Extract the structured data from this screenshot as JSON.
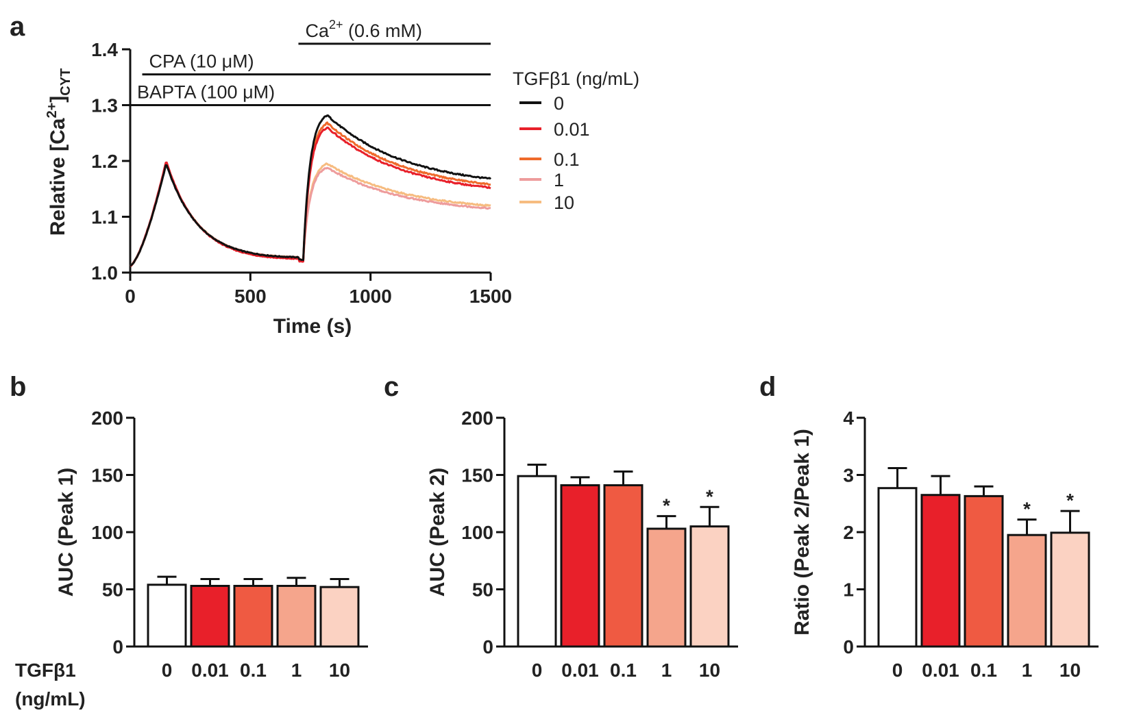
{
  "panel_labels": {
    "a": "a",
    "b": "b",
    "c": "c",
    "d": "d"
  },
  "chart_data": [
    {
      "type": "line",
      "panel": "a",
      "xlabel": "Time (s)",
      "ylabel_main": "Relative [Ca",
      "ylabel_sup": "2+",
      "ylabel_end": "]",
      "ylabel_sub": "CYT",
      "xlim": [
        0,
        1500
      ],
      "ylim": [
        1.0,
        1.4
      ],
      "xticks": [
        0,
        500,
        1000,
        1500
      ],
      "xtick_labels": [
        "0",
        "500",
        "1000",
        "1500"
      ],
      "yticks": [
        1.0,
        1.1,
        1.2,
        1.3,
        1.4
      ],
      "ytick_labels": [
        "1.0",
        "1.1",
        "1.2",
        "1.3",
        "1.4"
      ],
      "treatments": [
        {
          "label_main": "Ca",
          "label_sup": "2+",
          "label_rest": " (0.6 mM)",
          "x_start": 700,
          "x_end": 1500,
          "y": 1.41
        },
        {
          "label_main": "CPA (10 μM)",
          "label_sup": "",
          "label_rest": "",
          "x_start": 50,
          "x_end": 1500,
          "y": 1.355
        },
        {
          "label_main": "BAPTA (100 μM)",
          "label_sup": "",
          "label_rest": "",
          "x_start": 0,
          "x_end": 1500,
          "y": 1.3
        }
      ],
      "legend_title": "TGFβ1 (ng/mL)",
      "series": [
        {
          "name": "0",
          "color": "#111111",
          "peak1": 1.195,
          "trough": 1.025,
          "peak2": 1.282,
          "end": 1.168
        },
        {
          "name": "0.01",
          "color": "#e8202a",
          "peak1": 1.2,
          "trough": 1.022,
          "peak2": 1.26,
          "end": 1.152
        },
        {
          "name": "0.1",
          "color": "#ef6a2b",
          "peak1": 1.197,
          "trough": 1.024,
          "peak2": 1.268,
          "end": 1.158
        },
        {
          "name": "1",
          "color": "#ee9c9c",
          "peak1": 1.196,
          "trough": 1.025,
          "peak2": 1.188,
          "end": 1.115
        },
        {
          "name": "10",
          "color": "#f6bc80",
          "peak1": 1.197,
          "trough": 1.025,
          "peak2": 1.195,
          "end": 1.12
        }
      ]
    },
    {
      "type": "bar",
      "panel": "b",
      "ylabel": "AUC (Peak 1)",
      "ylim": [
        0,
        200
      ],
      "yticks": [
        0,
        50,
        100,
        150,
        200
      ],
      "ytick_labels": [
        "0",
        "50",
        "100",
        "150",
        "200"
      ],
      "categories": [
        "0",
        "0.01",
        "0.1",
        "1",
        "10"
      ],
      "values": [
        54,
        53,
        53,
        53,
        52
      ],
      "errors": [
        7,
        6,
        6,
        7,
        7
      ],
      "significance": [
        "",
        "",
        "",
        "",
        ""
      ],
      "colors": [
        "#ffffff",
        "#e8202a",
        "#ef5a42",
        "#f5a58c",
        "#fbd2c2"
      ],
      "x_title_line1": "TGFβ1",
      "x_title_line2": "(ng/mL)"
    },
    {
      "type": "bar",
      "panel": "c",
      "ylabel": "AUC (Peak 2)",
      "ylim": [
        0,
        200
      ],
      "yticks": [
        0,
        50,
        100,
        150,
        200
      ],
      "ytick_labels": [
        "0",
        "50",
        "100",
        "150",
        "200"
      ],
      "categories": [
        "0",
        "0.01",
        "0.1",
        "1",
        "10"
      ],
      "values": [
        149,
        141,
        141,
        103,
        105
      ],
      "errors": [
        10,
        7,
        12,
        11,
        17
      ],
      "significance": [
        "",
        "",
        "",
        "*",
        "*"
      ],
      "colors": [
        "#ffffff",
        "#e8202a",
        "#ef5a42",
        "#f5a58c",
        "#fbd2c2"
      ]
    },
    {
      "type": "bar",
      "panel": "d",
      "ylabel": "Ratio (Peak 2/Peak 1)",
      "ylim": [
        0,
        4
      ],
      "yticks": [
        0,
        1,
        2,
        3,
        4
      ],
      "ytick_labels": [
        "0",
        "1",
        "2",
        "3",
        "4"
      ],
      "categories": [
        "0",
        "0.01",
        "0.1",
        "1",
        "10"
      ],
      "values": [
        2.77,
        2.65,
        2.63,
        1.95,
        1.99
      ],
      "errors": [
        0.35,
        0.33,
        0.17,
        0.27,
        0.38
      ],
      "significance": [
        "",
        "",
        "",
        "*",
        "*"
      ],
      "colors": [
        "#ffffff",
        "#e8202a",
        "#ef5a42",
        "#f5a58c",
        "#fbd2c2"
      ]
    }
  ]
}
